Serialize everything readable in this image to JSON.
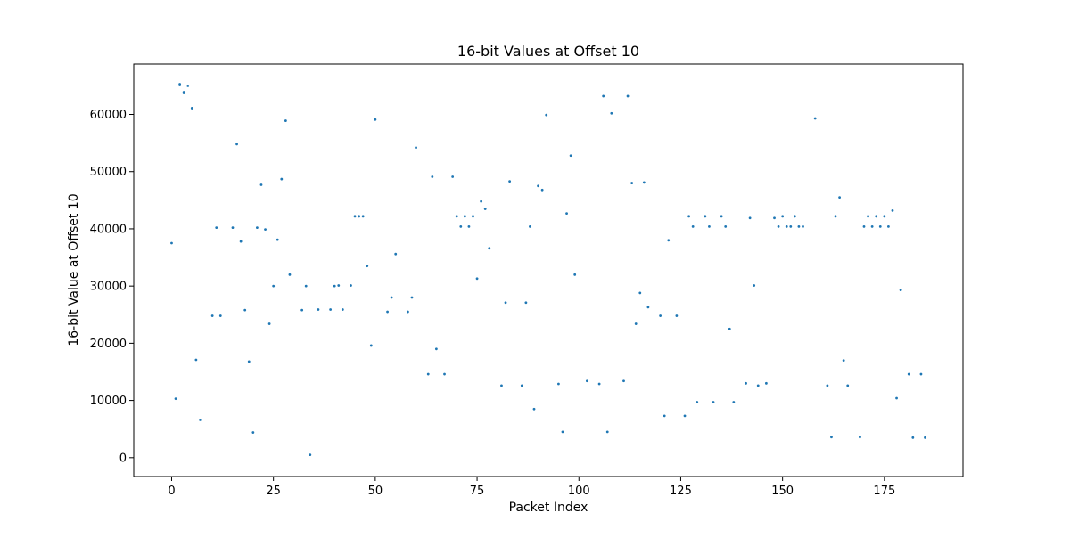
{
  "chart_data": {
    "type": "scatter",
    "title": "16-bit Values at Offset 10",
    "xlabel": "Packet Index",
    "ylabel": "16-bit Value at Offset 10",
    "xlim": [
      -9.3,
      194.3
    ],
    "ylim": [
      -3300,
      68800
    ],
    "xticks": [
      0,
      25,
      50,
      75,
      100,
      125,
      150,
      175
    ],
    "yticks": [
      0,
      10000,
      20000,
      30000,
      40000,
      50000,
      60000
    ],
    "grid": false,
    "marker_color": "#1f77b4",
    "x": [
      0,
      1,
      2,
      3,
      4,
      5,
      6,
      7,
      10,
      11,
      12,
      15,
      16,
      17,
      18,
      19,
      20,
      21,
      22,
      23,
      24,
      25,
      26,
      27,
      28,
      29,
      32,
      33,
      34,
      36,
      39,
      40,
      41,
      42,
      44,
      45,
      46,
      47,
      48,
      49,
      50,
      53,
      54,
      55,
      58,
      59,
      60,
      63,
      64,
      65,
      67,
      69,
      70,
      71,
      72,
      73,
      74,
      75,
      76,
      77,
      78,
      81,
      82,
      83,
      86,
      87,
      88,
      89,
      90,
      91,
      92,
      95,
      96,
      97,
      98,
      99,
      102,
      105,
      106,
      107,
      108,
      111,
      112,
      113,
      114,
      115,
      116,
      117,
      120,
      121,
      122,
      124,
      126,
      127,
      128,
      129,
      131,
      132,
      133,
      135,
      136,
      137,
      138,
      141,
      142,
      143,
      144,
      146,
      148,
      149,
      150,
      151,
      152,
      153,
      154,
      155,
      158,
      161,
      162,
      163,
      164,
      165,
      166,
      169,
      170,
      171,
      172,
      173,
      174,
      175,
      176,
      177,
      178,
      179,
      181,
      182,
      184,
      185
    ],
    "y": [
      37500,
      10300,
      65300,
      63900,
      65000,
      61100,
      17100,
      6600,
      24800,
      40200,
      24800,
      40200,
      54800,
      37800,
      25800,
      16800,
      4400,
      40200,
      47700,
      39900,
      23400,
      30000,
      38100,
      48700,
      58900,
      32000,
      25800,
      30000,
      500,
      25900,
      25900,
      30000,
      30100,
      25900,
      30100,
      42200,
      42200,
      42200,
      33500,
      19600,
      59100,
      25500,
      28000,
      35600,
      25500,
      28000,
      54200,
      14600,
      49100,
      19000,
      14600,
      49100,
      42200,
      40400,
      42200,
      40400,
      42200,
      31300,
      44800,
      43500,
      36600,
      12600,
      27100,
      48300,
      12600,
      27100,
      40400,
      8500,
      47500,
      46800,
      59900,
      12900,
      4500,
      42700,
      52800,
      32000,
      13400,
      12900,
      63200,
      4500,
      60200,
      13400,
      63200,
      48000,
      23400,
      28800,
      48100,
      26300,
      24800,
      7300,
      38000,
      24800,
      7300,
      42200,
      40400,
      9700,
      42200,
      40400,
      9700,
      42200,
      40400,
      22500,
      9700,
      13000,
      41900,
      30100,
      12600,
      13000,
      41900,
      40400,
      42200,
      40400,
      40400,
      42200,
      40400,
      40400,
      59300,
      12600,
      3600,
      42200,
      45500,
      17000,
      12600,
      3600,
      40400,
      42200,
      40400,
      42200,
      40400,
      42200,
      40400,
      43200,
      10400,
      29300,
      14600,
      3500,
      14600,
      3500
    ]
  }
}
